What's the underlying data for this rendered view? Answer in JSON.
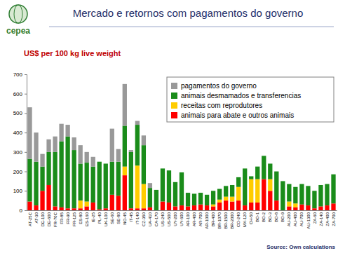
{
  "logo": "cepea",
  "chart_data": {
    "type": "bar",
    "title": "Mercado e retornos com pagamentos do governo",
    "y_label": "US$ per 100 kg live weight",
    "annotations": [
      "Source: Own calculations"
    ],
    "stacked": true,
    "grid": false,
    "legend": "upper right",
    "ylim": [
      0,
      700
    ],
    "yticks": [
      0,
      100,
      200,
      300,
      400,
      500,
      600,
      700
    ],
    "categories": [
      "AT-25C",
      "AT-30",
      "DE-100",
      "DE-600",
      "FR-70C",
      "FR-85",
      "FR-90",
      "FR-125",
      "ES-80",
      "ES-160",
      "IE-25",
      "PL-40",
      "UK-100",
      "SE-60",
      "SE-80",
      "NO-45",
      "IT-45",
      "IT-140",
      "CZ-350",
      "UA-410",
      "CA-170",
      "US-240",
      "US-500",
      "UY-200",
      "UY-600",
      "AR-100",
      "AR-400",
      "AR-700",
      "AR-1000",
      "BR-400",
      "BR-1070",
      "BR-1500",
      "BR-2000",
      "CO-240",
      "MX-120",
      "CH-50",
      "BO-1",
      "BO-2",
      "BO-3",
      "BO-8",
      "BO-9",
      "AU-200",
      "AU-400",
      "AU-700",
      "AU-1300",
      "ZA-60",
      "ZA-140",
      "ZA-400",
      "ZA-700"
    ],
    "series": [
      {
        "name": "animais para abate e outros animais",
        "color": "#ff0000",
        "values": [
          45,
          25,
          100,
          130,
          20,
          15,
          10,
          10,
          10,
          20,
          40,
          5,
          10,
          80,
          75,
          180,
          10,
          10,
          10,
          15,
          0,
          45,
          40,
          20,
          25,
          20,
          25,
          30,
          25,
          20,
          40,
          50,
          45,
          50,
          25,
          40,
          40,
          160,
          100,
          50,
          0,
          20,
          15,
          30,
          25,
          10,
          20,
          25,
          35
        ]
      },
      {
        "name": "receitas com reprodutores",
        "color": "#ffcc00",
        "values": [
          0,
          0,
          0,
          0,
          0,
          0,
          0,
          0,
          40,
          25,
          0,
          0,
          0,
          0,
          0,
          45,
          0,
          220,
          125,
          0,
          0,
          0,
          0,
          0,
          0,
          0,
          0,
          0,
          0,
          10,
          15,
          20,
          25,
          70,
          0,
          120,
          120,
          0,
          60,
          0,
          0,
          25,
          20,
          0,
          0,
          0,
          0,
          0,
          0
        ]
      },
      {
        "name": "animais desmamados e transferencias",
        "color": "#1a8c1a",
        "values": [
          220,
          225,
          125,
          170,
          280,
          340,
          370,
          300,
          190,
          200,
          185,
          245,
          230,
          170,
          175,
          210,
          290,
          210,
          200,
          100,
          105,
          170,
          165,
          125,
          170,
          70,
          60,
          60,
          55,
          70,
          55,
          55,
          60,
          50,
          190,
          15,
          65,
          120,
          80,
          150,
          150,
          90,
          85,
          105,
          100,
          90,
          110,
          110,
          150
        ]
      },
      {
        "name": "pagamentos do governo",
        "color": "#999999",
        "values": [
          265,
          150,
          65,
          65,
          80,
          90,
          60,
          65,
          95,
          55,
          50,
          0,
          0,
          170,
          65,
          215,
          10,
          20,
          50,
          25,
          0,
          0,
          0,
          0,
          0,
          0,
          0,
          0,
          0,
          0,
          0,
          0,
          0,
          0,
          0,
          0,
          0,
          0,
          0,
          0,
          0,
          0,
          0,
          0,
          0,
          0,
          0,
          0,
          0
        ]
      }
    ]
  }
}
